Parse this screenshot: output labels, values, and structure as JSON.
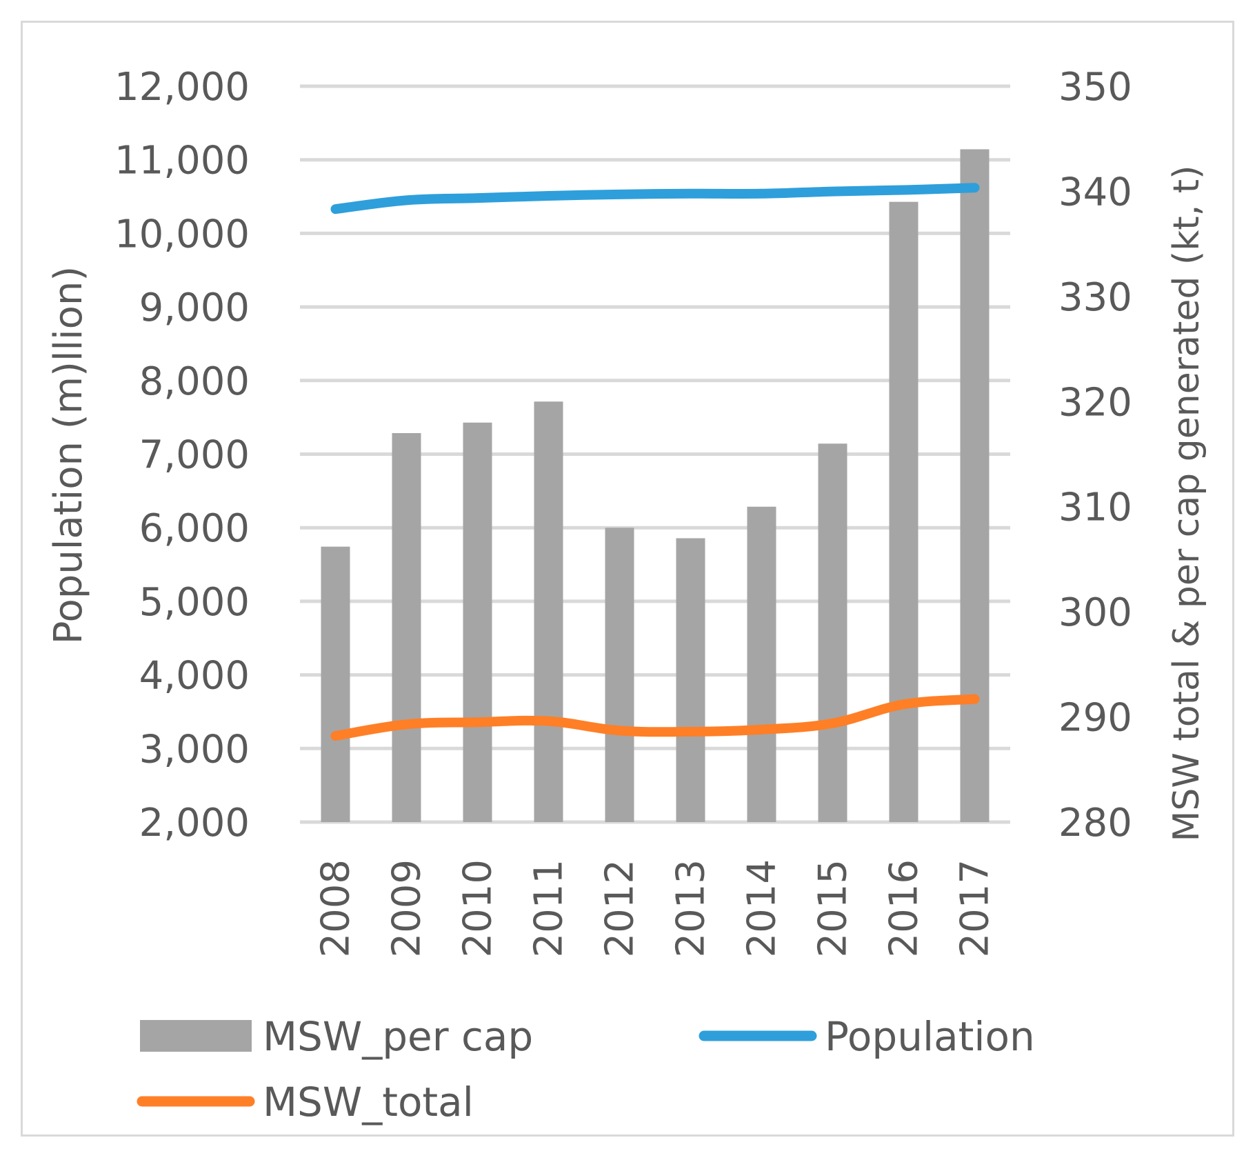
{
  "chart_data": {
    "type": "bar+line",
    "categories": [
      "2008",
      "2009",
      "2010",
      "2011",
      "2012",
      "2013",
      "2014",
      "2015",
      "2016",
      "2017"
    ],
    "left_axis": {
      "label": "Population (m)llion)",
      "ylim": [
        2000,
        12000
      ],
      "ticks": [
        2000,
        3000,
        4000,
        5000,
        6000,
        7000,
        8000,
        9000,
        10000,
        11000,
        12000
      ],
      "tick_labels": [
        "2,000",
        "3,000",
        "4,000",
        "5,000",
        "6,000",
        "7,000",
        "8,000",
        "9,000",
        "10,000",
        "11,000",
        "12,000"
      ]
    },
    "right_axis": {
      "label": "MSW total & per cap generated (kt, t)",
      "ylim": [
        280,
        350
      ],
      "ticks": [
        280,
        290,
        300,
        310,
        320,
        330,
        340,
        350
      ],
      "tick_labels": [
        "280",
        "290",
        "300",
        "310",
        "320",
        "330",
        "340",
        "350"
      ]
    },
    "series": [
      {
        "name": "MSW_per cap",
        "type": "bar",
        "axis": "right",
        "color": "#a5a5a5",
        "values": [
          306.2,
          317.0,
          318.0,
          320.0,
          308.0,
          307.0,
          310.0,
          316.0,
          339.0,
          344.0
        ]
      },
      {
        "name": "Population",
        "type": "line",
        "axis": "left",
        "color": "#2e9fdb",
        "values": [
          10330,
          10450,
          10480,
          10510,
          10530,
          10540,
          10540,
          10570,
          10590,
          10620
        ]
      },
      {
        "name": "MSW_total",
        "type": "line",
        "axis": "right",
        "color": "#ff7f27",
        "values": [
          288.2,
          289.3,
          289.5,
          289.6,
          288.7,
          288.6,
          288.8,
          289.4,
          291.2,
          291.7
        ]
      }
    ],
    "legend": {
      "position": "bottom",
      "items": [
        "MSW_per cap",
        "Population",
        "MSW_total"
      ]
    },
    "grid": true
  }
}
